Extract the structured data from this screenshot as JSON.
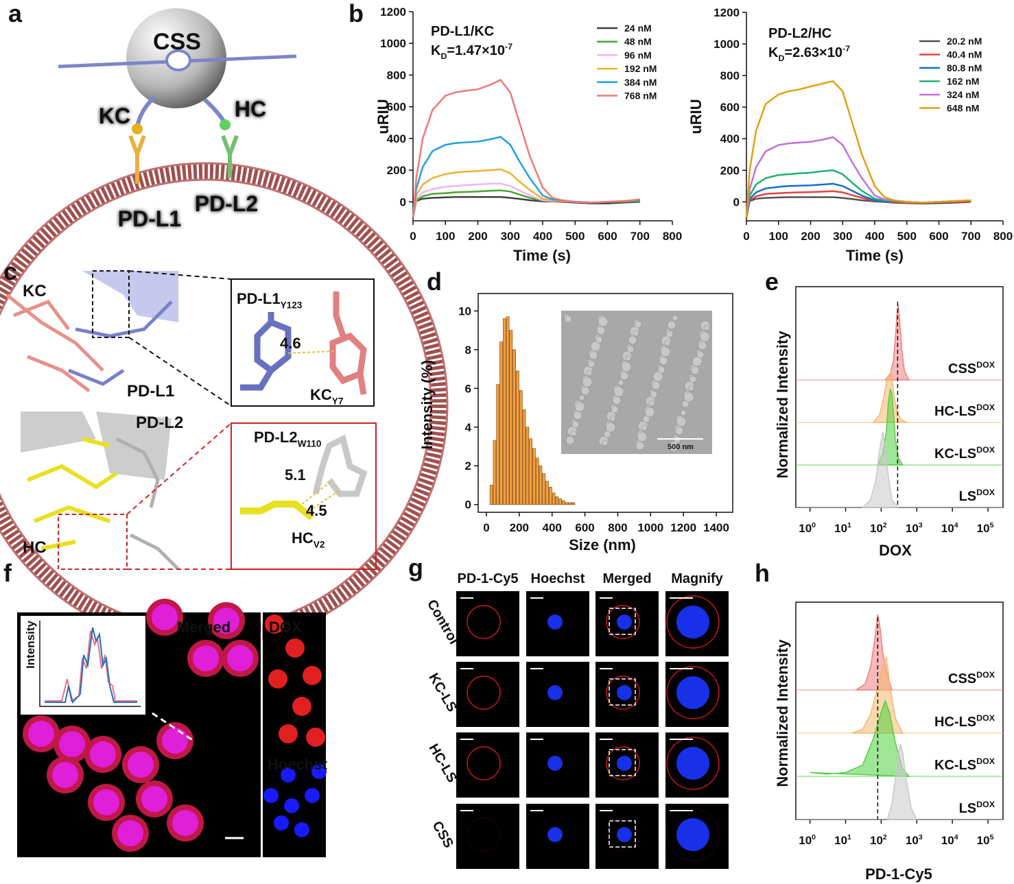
{
  "figure": {
    "panel_labels": [
      "a",
      "b",
      "c",
      "d",
      "e",
      "f",
      "g",
      "h"
    ],
    "a": {
      "sphere": "CSS",
      "ligand_left": "KC",
      "ligand_right": "HC",
      "receptor_left": "PD-L1",
      "receptor_right": "PD-L2"
    },
    "c": {
      "kc": "KC",
      "pdl1": "PD-L1",
      "pdl2": "PD-L2",
      "hc": "HC",
      "inset_top": {
        "residue1": {
          "text": "PD-L1",
          "sub": "Y123"
        },
        "distance": "4.6",
        "residue2": {
          "text": "KC",
          "sub": "Y7"
        }
      },
      "inset_bottom": {
        "residue1": {
          "text": "PD-L2",
          "sub": "W110"
        },
        "distance1": "5.1",
        "distance2": "4.5",
        "residue2": {
          "text": "HC",
          "sub": "V2"
        }
      }
    },
    "d_inset": {
      "scale": "500 nm"
    },
    "f": {
      "merged": "Merged",
      "dox": "DOX",
      "hoechst": "Hoechst",
      "inset_ylabel": "Intensity"
    },
    "g": {
      "columns": [
        "PD-1-Cy5",
        "Hoechst",
        "Merged",
        "Magnify"
      ],
      "rows": [
        "Control",
        "KC-LS",
        "HC-LS",
        "CSS"
      ]
    }
  },
  "chart_data": [
    {
      "type": "line",
      "title": "PD-L1/KC",
      "annotation": {
        "k": "K",
        "sub": "D",
        "text": "=1.47×10",
        "sup": "-7"
      },
      "xlabel": "Time (s)",
      "ylabel": "uRIU",
      "legend": "upper right",
      "xlim": [
        0,
        800
      ],
      "xticks": [
        0,
        100,
        200,
        300,
        400,
        500,
        600,
        700,
        800
      ],
      "ylim": [
        -120,
        1200
      ],
      "yticks": [
        0,
        200,
        400,
        600,
        800,
        1000,
        1200
      ],
      "x": [
        0,
        10,
        30,
        60,
        100,
        130,
        160,
        200,
        240,
        270,
        300,
        330,
        360,
        400,
        430,
        460,
        500,
        550,
        600,
        650,
        700
      ],
      "series": [
        {
          "name": "24  nM",
          "color": "#404040",
          "values": [
            -100,
            5,
            20,
            25,
            28,
            30,
            30,
            30,
            30,
            30,
            25,
            18,
            10,
            3,
            2,
            0,
            -5,
            -10,
            -10,
            -5,
            0
          ]
        },
        {
          "name": "48  nM",
          "color": "#4aa52e",
          "values": [
            -100,
            10,
            35,
            50,
            55,
            60,
            62,
            65,
            70,
            72,
            65,
            45,
            25,
            8,
            5,
            5,
            0,
            -5,
            0,
            0,
            5
          ]
        },
        {
          "name": "96  nM",
          "color": "#f2b3f2",
          "values": [
            -100,
            20,
            60,
            80,
            95,
            100,
            105,
            110,
            115,
            115,
            100,
            70,
            40,
            10,
            5,
            5,
            0,
            -5,
            0,
            5,
            10
          ]
        },
        {
          "name": "192 nM",
          "color": "#f0b030",
          "values": [
            -100,
            40,
            110,
            150,
            175,
            185,
            190,
            195,
            200,
            205,
            180,
            125,
            75,
            20,
            10,
            5,
            0,
            -5,
            0,
            5,
            10
          ]
        },
        {
          "name": "384 nM",
          "color": "#20a0e0",
          "values": [
            -100,
            80,
            220,
            320,
            360,
            370,
            375,
            380,
            395,
            410,
            360,
            250,
            150,
            40,
            15,
            10,
            0,
            -5,
            0,
            5,
            10
          ]
        },
        {
          "name": "768 nM",
          "color": "#f07878",
          "values": [
            -100,
            150,
            400,
            580,
            670,
            690,
            700,
            710,
            740,
            770,
            690,
            490,
            290,
            90,
            25,
            10,
            0,
            -5,
            0,
            5,
            15
          ]
        }
      ]
    },
    {
      "type": "line",
      "title": "PD-L2/HC",
      "annotation": {
        "k": "K",
        "sub": "D",
        "text": "=2.63×10",
        "sup": "-7"
      },
      "xlabel": "Time (s)",
      "ylabel": "uRIU",
      "legend": "upper right",
      "xlim": [
        0,
        800
      ],
      "xticks": [
        0,
        100,
        200,
        300,
        400,
        500,
        600,
        700,
        800
      ],
      "ylim": [
        -120,
        1200
      ],
      "yticks": [
        0,
        200,
        400,
        600,
        800,
        1000,
        1200
      ],
      "x": [
        0,
        10,
        30,
        60,
        100,
        130,
        160,
        200,
        240,
        270,
        300,
        330,
        360,
        400,
        430,
        460,
        500,
        550,
        600,
        650,
        700
      ],
      "series": [
        {
          "name": "20.2 nM",
          "color": "#505050",
          "values": [
            -100,
            5,
            20,
            25,
            28,
            30,
            30,
            30,
            30,
            30,
            25,
            18,
            10,
            3,
            0,
            -5,
            -8,
            -10,
            -8,
            -5,
            0
          ]
        },
        {
          "name": "40.4 nM",
          "color": "#e84040",
          "values": [
            -100,
            10,
            35,
            50,
            55,
            58,
            60,
            62,
            65,
            68,
            60,
            42,
            25,
            8,
            5,
            0,
            -5,
            -5,
            0,
            0,
            5
          ]
        },
        {
          "name": "80.8 nM",
          "color": "#1070d0",
          "values": [
            -100,
            20,
            60,
            85,
            95,
            100,
            102,
            105,
            110,
            115,
            100,
            70,
            40,
            10,
            5,
            5,
            0,
            -5,
            0,
            5,
            10
          ]
        },
        {
          "name": "162 nM",
          "color": "#20b070",
          "values": [
            -100,
            40,
            110,
            150,
            170,
            175,
            180,
            185,
            195,
            200,
            175,
            120,
            70,
            20,
            10,
            5,
            0,
            -5,
            0,
            5,
            10
          ]
        },
        {
          "name": "324 nM",
          "color": "#c070e0",
          "values": [
            -100,
            80,
            220,
            320,
            360,
            370,
            375,
            380,
            395,
            410,
            360,
            250,
            150,
            40,
            15,
            10,
            0,
            -5,
            0,
            5,
            10
          ]
        },
        {
          "name": "648 nM",
          "color": "#e0a010",
          "values": [
            -100,
            200,
            450,
            620,
            680,
            700,
            710,
            730,
            750,
            765,
            700,
            500,
            300,
            100,
            30,
            10,
            0,
            -5,
            0,
            5,
            10
          ]
        }
      ]
    },
    {
      "type": "histogram",
      "xlabel": "Size (nm)",
      "ylabel": "Intensity (%)",
      "color": "#f0a040",
      "xlim": [
        -50,
        1500
      ],
      "xticks": [
        0,
        200,
        400,
        600,
        800,
        1000,
        1200,
        1400
      ],
      "ylim": [
        -0.4,
        10.9
      ],
      "yticks": [
        0,
        2,
        4,
        6,
        8,
        10
      ],
      "bins": [
        20,
        40,
        60,
        80,
        100,
        120,
        140,
        160,
        180,
        200,
        220,
        240,
        260,
        280,
        300,
        320,
        340,
        360,
        380,
        400,
        420,
        440,
        460,
        480,
        500,
        520,
        540
      ],
      "values": [
        1.0,
        3.3,
        6.2,
        8.4,
        9.6,
        9.7,
        9.0,
        8.0,
        6.9,
        5.9,
        4.9,
        4.0,
        3.4,
        2.9,
        2.4,
        2.0,
        1.6,
        1.2,
        0.9,
        0.6,
        0.4,
        0.3,
        0.2,
        0.1,
        0.1,
        0.1
      ]
    },
    {
      "type": "ridgeline",
      "xlabel": "DOX",
      "ylabel": "Normalized Intensity",
      "log_x": true,
      "marker": 290,
      "xlim": [
        0.4,
        265000
      ],
      "xticks": [
        {
          "value": 1,
          "label": "10",
          "sup": "0"
        },
        {
          "value": 10,
          "label": "10",
          "sup": "1"
        },
        {
          "value": 100,
          "label": "10",
          "sup": "2"
        },
        {
          "value": 1000,
          "label": "10",
          "sup": "3"
        },
        {
          "value": 10000,
          "label": "10",
          "sup": "4"
        },
        {
          "value": 100000,
          "label": "10",
          "sup": "5"
        }
      ],
      "series": [
        {
          "name": "CSS",
          "sup": "DOX",
          "color": "#f08080",
          "x": [
            130,
            180,
            220,
            250,
            280,
            300,
            330,
            380,
            450,
            600
          ],
          "values": [
            0,
            8,
            25,
            55,
            90,
            100,
            80,
            40,
            12,
            0
          ]
        },
        {
          "name": "HC-LS",
          "sup": "DOX",
          "color": "#f5b870",
          "x": [
            60,
            90,
            120,
            150,
            170,
            190,
            210,
            240,
            280,
            350,
            500
          ],
          "values": [
            0,
            10,
            35,
            60,
            55,
            70,
            50,
            30,
            15,
            5,
            0
          ]
        },
        {
          "name": "KC-LS",
          "sup": "DOX",
          "color": "#50d040",
          "x": [
            80,
            110,
            140,
            160,
            180,
            200,
            220,
            250,
            300,
            400
          ],
          "values": [
            0,
            15,
            45,
            85,
            100,
            95,
            70,
            35,
            10,
            0
          ]
        },
        {
          "name": "LS",
          "sup": "DOX",
          "color": "#c8c8c8",
          "x": [
            30,
            50,
            70,
            90,
            110,
            130,
            160,
            200,
            300
          ],
          "values": [
            0,
            10,
            35,
            75,
            100,
            80,
            40,
            10,
            0
          ]
        }
      ]
    },
    {
      "type": "ridgeline",
      "xlabel": "PD-1-Cy5",
      "ylabel": "Normalized Intensity",
      "log_x": true,
      "marker": 80,
      "xlim": [
        0.4,
        265000
      ],
      "xticks": [
        {
          "value": 1,
          "label": "10",
          "sup": "0"
        },
        {
          "value": 10,
          "label": "10",
          "sup": "1"
        },
        {
          "value": 100,
          "label": "10",
          "sup": "2"
        },
        {
          "value": 1000,
          "label": "10",
          "sup": "3"
        },
        {
          "value": 10000,
          "label": "10",
          "sup": "4"
        },
        {
          "value": 100000,
          "label": "10",
          "sup": "5"
        }
      ],
      "series": [
        {
          "name": "CSS",
          "sup": "DOX",
          "color": "#f08080",
          "x": [
            20,
            35,
            50,
            65,
            80,
            95,
            110,
            140,
            200
          ],
          "values": [
            0,
            8,
            30,
            65,
            100,
            80,
            50,
            25,
            0
          ]
        },
        {
          "name": "HC-LS",
          "sup": "DOX",
          "color": "#f5b870",
          "x": [
            15,
            30,
            50,
            80,
            110,
            140,
            180,
            250,
            400
          ],
          "values": [
            0,
            5,
            25,
            60,
            90,
            100,
            60,
            20,
            0
          ]
        },
        {
          "name": "KC-LS",
          "sup": "DOX",
          "color": "#50d040",
          "x": [
            1,
            3,
            10,
            30,
            60,
            100,
            130,
            170,
            250,
            400,
            600
          ],
          "values": [
            5,
            3,
            5,
            15,
            50,
            85,
            100,
            85,
            45,
            10,
            0
          ]
        },
        {
          "name": "LS",
          "sup": "DOX",
          "color": "#c8c8c8",
          "x": [
            150,
            200,
            250,
            300,
            350,
            400,
            500,
            700,
            1000
          ],
          "values": [
            0,
            20,
            55,
            85,
            100,
            90,
            55,
            15,
            0
          ]
        }
      ]
    }
  ]
}
